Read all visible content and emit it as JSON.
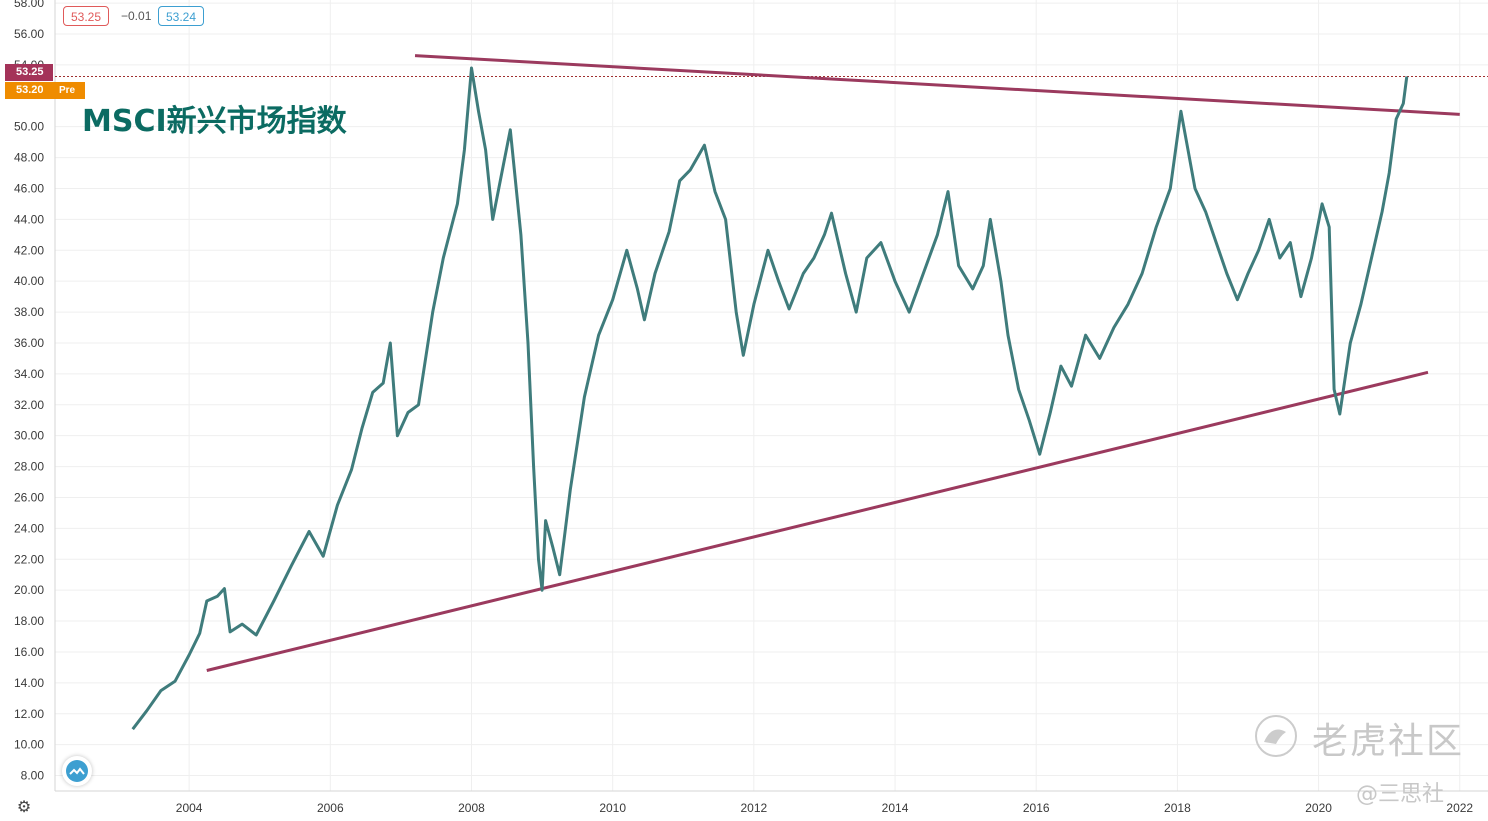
{
  "header": {
    "price_chip": "53.25",
    "change": "−0.01",
    "mid_chip": "53.24"
  },
  "price_tags": {
    "last": "53.25",
    "pre": "53.20",
    "pre_label": "Pre"
  },
  "watermark": {
    "brand": "老虎社区",
    "author": "@三思社"
  },
  "icons": {
    "settings": "gear-icon",
    "logo": "tradingview-cloud-icon",
    "watermark_logo": "tiger-logo-icon"
  },
  "colors": {
    "series": "#3f7c7c",
    "trendline": "#9b3a5e",
    "last_price_line": "#a03030",
    "title": "#0b6b62"
  },
  "chart_data": {
    "type": "line",
    "title": "MSCI新兴市场指数",
    "xlabel": "",
    "ylabel": "",
    "x_ticks": [
      2004,
      2006,
      2008,
      2010,
      2012,
      2014,
      2016,
      2018,
      2020,
      2022
    ],
    "y_ticks": [
      "8.00",
      "10.00",
      "12.00",
      "14.00",
      "16.00",
      "18.00",
      "20.00",
      "22.00",
      "24.00",
      "26.00",
      "28.00",
      "30.00",
      "32.00",
      "34.00",
      "36.00",
      "38.00",
      "40.00",
      "42.00",
      "44.00",
      "46.00",
      "48.00",
      "50.00",
      "54.00",
      "56.00",
      "58.00"
    ],
    "xlim": [
      2002.1,
      2022.4
    ],
    "ylim": [
      7,
      58.2
    ],
    "grid": true,
    "last_price": 53.25,
    "series": [
      {
        "values": [
          [
            2003.2,
            11.0
          ],
          [
            2003.4,
            12.2
          ],
          [
            2003.6,
            13.5
          ],
          [
            2003.8,
            14.1
          ],
          [
            2004.0,
            15.8
          ],
          [
            2004.15,
            17.2
          ],
          [
            2004.25,
            19.3
          ],
          [
            2004.4,
            19.6
          ],
          [
            2004.5,
            20.1
          ],
          [
            2004.58,
            17.3
          ],
          [
            2004.75,
            17.8
          ],
          [
            2004.95,
            17.1
          ],
          [
            2005.2,
            19.3
          ],
          [
            2005.45,
            21.6
          ],
          [
            2005.7,
            23.8
          ],
          [
            2005.9,
            22.2
          ],
          [
            2006.1,
            25.5
          ],
          [
            2006.3,
            27.8
          ],
          [
            2006.45,
            30.5
          ],
          [
            2006.6,
            32.8
          ],
          [
            2006.75,
            33.4
          ],
          [
            2006.85,
            36.0
          ],
          [
            2006.95,
            30.0
          ],
          [
            2007.1,
            31.5
          ],
          [
            2007.25,
            32.0
          ],
          [
            2007.45,
            38.0
          ],
          [
            2007.6,
            41.5
          ],
          [
            2007.8,
            45.0
          ],
          [
            2007.9,
            48.5
          ],
          [
            2008.0,
            53.8
          ],
          [
            2008.1,
            51.0
          ],
          [
            2008.2,
            48.5
          ],
          [
            2008.3,
            44.0
          ],
          [
            2008.45,
            47.5
          ],
          [
            2008.55,
            49.8
          ],
          [
            2008.7,
            43.0
          ],
          [
            2008.8,
            36.0
          ],
          [
            2008.88,
            28.0
          ],
          [
            2008.95,
            22.0
          ],
          [
            2009.0,
            20.0
          ],
          [
            2009.05,
            24.5
          ],
          [
            2009.15,
            22.8
          ],
          [
            2009.25,
            21.0
          ],
          [
            2009.4,
            26.5
          ],
          [
            2009.6,
            32.5
          ],
          [
            2009.8,
            36.5
          ],
          [
            2010.0,
            38.8
          ],
          [
            2010.2,
            42.0
          ],
          [
            2010.35,
            39.5
          ],
          [
            2010.45,
            37.5
          ],
          [
            2010.6,
            40.5
          ],
          [
            2010.8,
            43.2
          ],
          [
            2010.95,
            46.5
          ],
          [
            2011.1,
            47.2
          ],
          [
            2011.3,
            48.8
          ],
          [
            2011.45,
            45.8
          ],
          [
            2011.6,
            44.0
          ],
          [
            2011.75,
            38.0
          ],
          [
            2011.85,
            35.2
          ],
          [
            2012.0,
            38.5
          ],
          [
            2012.2,
            42.0
          ],
          [
            2012.35,
            40.0
          ],
          [
            2012.5,
            38.2
          ],
          [
            2012.7,
            40.5
          ],
          [
            2012.85,
            41.5
          ],
          [
            2013.0,
            43.0
          ],
          [
            2013.1,
            44.4
          ],
          [
            2013.3,
            40.5
          ],
          [
            2013.45,
            38.0
          ],
          [
            2013.6,
            41.5
          ],
          [
            2013.8,
            42.5
          ],
          [
            2014.0,
            40.0
          ],
          [
            2014.2,
            38.0
          ],
          [
            2014.4,
            40.5
          ],
          [
            2014.6,
            43.0
          ],
          [
            2014.75,
            45.8
          ],
          [
            2014.9,
            41.0
          ],
          [
            2015.1,
            39.5
          ],
          [
            2015.25,
            41.0
          ],
          [
            2015.35,
            44.0
          ],
          [
            2015.5,
            40.0
          ],
          [
            2015.6,
            36.5
          ],
          [
            2015.75,
            33.0
          ],
          [
            2015.9,
            31.0
          ],
          [
            2016.05,
            28.8
          ],
          [
            2016.2,
            31.5
          ],
          [
            2016.35,
            34.5
          ],
          [
            2016.5,
            33.2
          ],
          [
            2016.7,
            36.5
          ],
          [
            2016.9,
            35.0
          ],
          [
            2017.1,
            37.0
          ],
          [
            2017.3,
            38.5
          ],
          [
            2017.5,
            40.5
          ],
          [
            2017.7,
            43.5
          ],
          [
            2017.9,
            46.0
          ],
          [
            2018.05,
            51.0
          ],
          [
            2018.15,
            48.5
          ],
          [
            2018.25,
            46.0
          ],
          [
            2018.4,
            44.5
          ],
          [
            2018.55,
            42.5
          ],
          [
            2018.7,
            40.5
          ],
          [
            2018.85,
            38.8
          ],
          [
            2019.0,
            40.5
          ],
          [
            2019.15,
            42.0
          ],
          [
            2019.3,
            44.0
          ],
          [
            2019.45,
            41.5
          ],
          [
            2019.6,
            42.5
          ],
          [
            2019.75,
            39.0
          ],
          [
            2019.9,
            41.5
          ],
          [
            2020.05,
            45.0
          ],
          [
            2020.15,
            43.5
          ],
          [
            2020.22,
            33.0
          ],
          [
            2020.3,
            31.4
          ],
          [
            2020.45,
            36.0
          ],
          [
            2020.6,
            38.5
          ],
          [
            2020.75,
            41.5
          ],
          [
            2020.9,
            44.5
          ],
          [
            2021.0,
            47.0
          ],
          [
            2021.1,
            50.5
          ],
          [
            2021.2,
            51.5
          ],
          [
            2021.25,
            53.25
          ]
        ]
      }
    ],
    "trendlines": [
      {
        "from": [
          2007.2,
          54.6
        ],
        "to": [
          2022.0,
          50.8
        ]
      },
      {
        "from": [
          2004.25,
          14.8
        ],
        "to": [
          2021.55,
          34.1
        ]
      }
    ]
  }
}
